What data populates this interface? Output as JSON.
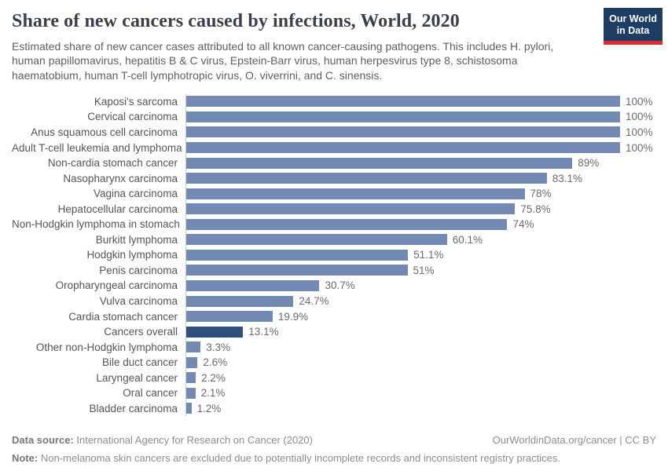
{
  "header": {
    "title": "Share of new cancers caused by infections, World, 2020",
    "subtitle": "Estimated share of new cancer cases attributed to all known cancer-causing pathogens. This includes H. pylori,\nhuman papillomavirus, hepatitis B & C virus, Epstein-Barr virus, human herpesvirus type 8, schistosoma\nhaematobium, human T-cell lymphotropic virus, O. viverrini, and C. sinensis.",
    "logo": {
      "line1": "Our World",
      "line2": "in Data",
      "bg_color": "#1d3d63",
      "accent_color": "#dc2c35"
    }
  },
  "chart_data": {
    "type": "bar",
    "orientation": "horizontal",
    "title": "Share of new cancers caused by infections, World, 2020",
    "xlabel": "",
    "ylabel": "",
    "xlim": [
      0,
      100
    ],
    "unit": "%",
    "grid": false,
    "bar_color": "#7289b3",
    "highlight_color": "#2f4f7d",
    "highlight_category": "Cancers overall",
    "highlight_index": 15,
    "categories": [
      "Kaposi's sarcoma",
      "Cervical carcinoma",
      "Anus squamous cell carcinoma",
      "Adult T-cell leukemia and lymphoma",
      "Non-cardia stomach cancer",
      "Nasopharynx carcinoma",
      "Vagina carcinoma",
      "Hepatocellular carcinoma",
      "Non-Hodgkin lymphoma in stomach",
      "Burkitt lymphoma",
      "Hodgkin lymphoma",
      "Penis carcinoma",
      "Oropharyngeal carcinoma",
      "Vulva carcinoma",
      "Cardia stomach cancer",
      "Cancers overall",
      "Other non-Hodgkin lymphoma",
      "Bile duct cancer",
      "Laryngeal cancer",
      "Oral cancer",
      "Bladder carcinoma"
    ],
    "values": [
      100,
      100,
      100,
      100,
      89,
      83.1,
      78,
      75.8,
      74,
      60.1,
      51.1,
      51,
      30.7,
      24.7,
      19.9,
      13.1,
      3.3,
      2.6,
      2.2,
      2.1,
      1.2
    ],
    "value_labels": [
      "100%",
      "100%",
      "100%",
      "100%",
      "89%",
      "83.1%",
      "78%",
      "75.8%",
      "74%",
      "60.1%",
      "51.1%",
      "51%",
      "30.7%",
      "24.7%",
      "19.9%",
      "13.1%",
      "3.3%",
      "2.6%",
      "2.2%",
      "2.1%",
      "1.2%"
    ]
  },
  "footer": {
    "datasource_label": "Data source:",
    "datasource_text": " International Agency for Research on Cancer (2020)",
    "citation": "OurWorldinData.org/cancer | CC BY",
    "note_label": "Note:",
    "note_text": " Non-melanoma skin cancers are excluded due to potentially incomplete records and inconsistent registry practices."
  }
}
